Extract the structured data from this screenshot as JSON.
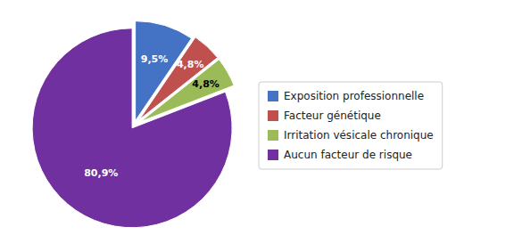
{
  "chart_data": {
    "type": "pie",
    "categories": [
      "Exposition professionnelle",
      "Facteur génétique",
      "Irritation vésicale chronique",
      "Aucun facteur de risque"
    ],
    "values": [
      9.5,
      4.8,
      4.8,
      80.9
    ],
    "value_labels": [
      "9,5%",
      "4,8%",
      "4,8%",
      "80,9%"
    ],
    "colors": [
      "#4472C4",
      "#C0504D",
      "#9BBB59",
      "#7030A0"
    ],
    "data_labels": true,
    "legend": "right"
  }
}
